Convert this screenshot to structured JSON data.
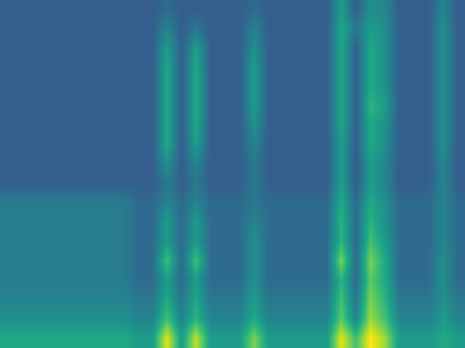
{
  "chart_data": {
    "type": "heatmap",
    "tick_labels": false,
    "clim": [
      0,
      1
    ],
    "cells": [
      [
        0.3,
        0.3,
        0.3,
        0.3,
        0.3,
        0.3,
        0.3,
        0.3,
        0.3,
        0.3,
        0.3,
        0.35,
        0.3,
        0.3,
        0.3,
        0.3,
        0.3,
        0.35,
        0.3,
        0.3,
        0.3,
        0.3,
        0.3,
        0.55,
        0.3,
        0.5,
        0.45,
        0.3,
        0.3,
        0.3,
        0.45,
        0.3
      ],
      [
        0.3,
        0.3,
        0.3,
        0.3,
        0.3,
        0.3,
        0.3,
        0.3,
        0.3,
        0.3,
        0.3,
        0.45,
        0.3,
        0.4,
        0.3,
        0.3,
        0.3,
        0.45,
        0.3,
        0.3,
        0.3,
        0.3,
        0.3,
        0.6,
        0.4,
        0.55,
        0.5,
        0.3,
        0.3,
        0.3,
        0.5,
        0.3
      ],
      [
        0.3,
        0.3,
        0.3,
        0.3,
        0.3,
        0.3,
        0.3,
        0.3,
        0.3,
        0.3,
        0.3,
        0.55,
        0.3,
        0.55,
        0.3,
        0.3,
        0.3,
        0.5,
        0.3,
        0.3,
        0.3,
        0.3,
        0.3,
        0.6,
        0.3,
        0.6,
        0.5,
        0.3,
        0.3,
        0.3,
        0.5,
        0.3
      ],
      [
        0.3,
        0.3,
        0.3,
        0.3,
        0.3,
        0.3,
        0.3,
        0.3,
        0.3,
        0.3,
        0.3,
        0.6,
        0.3,
        0.6,
        0.3,
        0.3,
        0.3,
        0.55,
        0.3,
        0.3,
        0.3,
        0.3,
        0.3,
        0.6,
        0.3,
        0.6,
        0.5,
        0.3,
        0.3,
        0.3,
        0.5,
        0.3
      ],
      [
        0.3,
        0.3,
        0.3,
        0.3,
        0.3,
        0.3,
        0.3,
        0.3,
        0.3,
        0.3,
        0.3,
        0.6,
        0.3,
        0.6,
        0.3,
        0.3,
        0.3,
        0.55,
        0.3,
        0.3,
        0.3,
        0.3,
        0.3,
        0.6,
        0.3,
        0.6,
        0.5,
        0.3,
        0.3,
        0.3,
        0.5,
        0.3
      ],
      [
        0.3,
        0.3,
        0.3,
        0.3,
        0.3,
        0.3,
        0.3,
        0.3,
        0.3,
        0.3,
        0.3,
        0.6,
        0.3,
        0.6,
        0.3,
        0.3,
        0.3,
        0.55,
        0.3,
        0.3,
        0.3,
        0.3,
        0.3,
        0.6,
        0.3,
        0.65,
        0.55,
        0.3,
        0.3,
        0.3,
        0.5,
        0.3
      ],
      [
        0.3,
        0.3,
        0.3,
        0.3,
        0.3,
        0.3,
        0.3,
        0.3,
        0.3,
        0.3,
        0.3,
        0.6,
        0.3,
        0.6,
        0.3,
        0.3,
        0.3,
        0.5,
        0.3,
        0.3,
        0.3,
        0.3,
        0.3,
        0.6,
        0.3,
        0.6,
        0.5,
        0.3,
        0.3,
        0.3,
        0.5,
        0.3
      ],
      [
        0.3,
        0.3,
        0.3,
        0.3,
        0.3,
        0.3,
        0.3,
        0.3,
        0.3,
        0.3,
        0.3,
        0.6,
        0.3,
        0.55,
        0.3,
        0.3,
        0.3,
        0.45,
        0.3,
        0.3,
        0.3,
        0.3,
        0.3,
        0.55,
        0.3,
        0.6,
        0.5,
        0.3,
        0.3,
        0.3,
        0.5,
        0.3
      ],
      [
        0.3,
        0.3,
        0.3,
        0.3,
        0.3,
        0.3,
        0.3,
        0.3,
        0.3,
        0.3,
        0.3,
        0.5,
        0.3,
        0.45,
        0.3,
        0.3,
        0.3,
        0.4,
        0.3,
        0.3,
        0.3,
        0.3,
        0.3,
        0.55,
        0.3,
        0.55,
        0.45,
        0.3,
        0.3,
        0.3,
        0.45,
        0.3
      ],
      [
        0.3,
        0.3,
        0.3,
        0.3,
        0.3,
        0.3,
        0.3,
        0.3,
        0.3,
        0.3,
        0.3,
        0.4,
        0.3,
        0.4,
        0.3,
        0.3,
        0.3,
        0.4,
        0.3,
        0.3,
        0.3,
        0.3,
        0.3,
        0.55,
        0.3,
        0.55,
        0.45,
        0.3,
        0.3,
        0.3,
        0.45,
        0.3
      ],
      [
        0.42,
        0.42,
        0.42,
        0.42,
        0.42,
        0.42,
        0.42,
        0.42,
        0.42,
        0.35,
        0.35,
        0.45,
        0.35,
        0.45,
        0.35,
        0.35,
        0.35,
        0.4,
        0.35,
        0.35,
        0.35,
        0.35,
        0.35,
        0.6,
        0.35,
        0.6,
        0.5,
        0.35,
        0.35,
        0.35,
        0.45,
        0.35
      ],
      [
        0.42,
        0.42,
        0.42,
        0.42,
        0.42,
        0.42,
        0.42,
        0.42,
        0.42,
        0.35,
        0.35,
        0.55,
        0.35,
        0.55,
        0.35,
        0.35,
        0.35,
        0.45,
        0.35,
        0.35,
        0.35,
        0.35,
        0.35,
        0.65,
        0.35,
        0.65,
        0.5,
        0.35,
        0.35,
        0.35,
        0.45,
        0.35
      ],
      [
        0.42,
        0.42,
        0.42,
        0.42,
        0.42,
        0.42,
        0.42,
        0.42,
        0.42,
        0.35,
        0.35,
        0.55,
        0.35,
        0.55,
        0.35,
        0.35,
        0.35,
        0.5,
        0.35,
        0.35,
        0.35,
        0.35,
        0.35,
        0.65,
        0.35,
        0.7,
        0.55,
        0.35,
        0.35,
        0.35,
        0.45,
        0.35
      ],
      [
        0.42,
        0.42,
        0.42,
        0.42,
        0.42,
        0.42,
        0.42,
        0.42,
        0.42,
        0.35,
        0.35,
        0.7,
        0.35,
        0.7,
        0.35,
        0.35,
        0.35,
        0.5,
        0.35,
        0.35,
        0.35,
        0.35,
        0.35,
        0.8,
        0.35,
        0.8,
        0.6,
        0.35,
        0.35,
        0.35,
        0.5,
        0.35
      ],
      [
        0.42,
        0.42,
        0.42,
        0.42,
        0.42,
        0.42,
        0.42,
        0.42,
        0.42,
        0.35,
        0.35,
        0.55,
        0.35,
        0.55,
        0.35,
        0.35,
        0.35,
        0.5,
        0.35,
        0.35,
        0.35,
        0.35,
        0.35,
        0.65,
        0.35,
        0.75,
        0.6,
        0.35,
        0.35,
        0.35,
        0.5,
        0.35
      ],
      [
        0.45,
        0.45,
        0.45,
        0.45,
        0.45,
        0.45,
        0.45,
        0.45,
        0.45,
        0.4,
        0.4,
        0.6,
        0.4,
        0.6,
        0.4,
        0.4,
        0.4,
        0.55,
        0.4,
        0.4,
        0.4,
        0.4,
        0.4,
        0.7,
        0.4,
        0.8,
        0.65,
        0.4,
        0.4,
        0.4,
        0.5,
        0.4
      ],
      [
        0.5,
        0.5,
        0.5,
        0.5,
        0.5,
        0.5,
        0.5,
        0.5,
        0.5,
        0.45,
        0.45,
        0.7,
        0.45,
        0.65,
        0.45,
        0.45,
        0.45,
        0.6,
        0.45,
        0.45,
        0.45,
        0.45,
        0.45,
        0.75,
        0.45,
        0.85,
        0.7,
        0.45,
        0.45,
        0.45,
        0.55,
        0.45
      ],
      [
        0.6,
        0.6,
        0.6,
        0.6,
        0.6,
        0.6,
        0.6,
        0.6,
        0.6,
        0.55,
        0.55,
        0.95,
        0.55,
        0.9,
        0.55,
        0.55,
        0.55,
        0.8,
        0.55,
        0.55,
        0.55,
        0.55,
        0.55,
        0.95,
        0.7,
        1.0,
        0.85,
        0.55,
        0.55,
        0.55,
        0.6,
        0.55
      ]
    ]
  }
}
